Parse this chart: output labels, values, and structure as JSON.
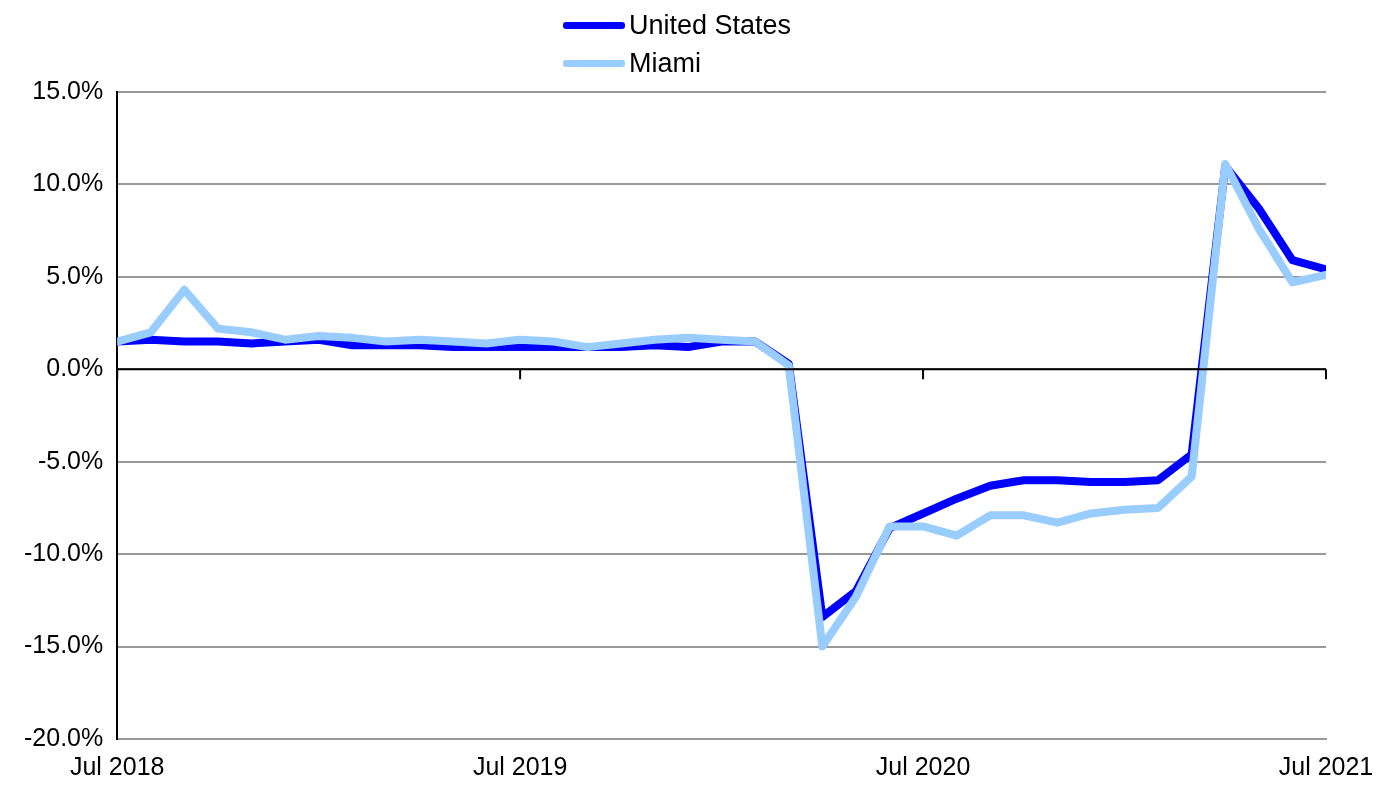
{
  "chart_data": {
    "type": "line",
    "x": [
      "2018-07",
      "2018-08",
      "2018-09",
      "2018-10",
      "2018-11",
      "2018-12",
      "2019-01",
      "2019-02",
      "2019-03",
      "2019-04",
      "2019-05",
      "2019-06",
      "2019-07",
      "2019-08",
      "2019-09",
      "2019-10",
      "2019-11",
      "2019-12",
      "2020-01",
      "2020-02",
      "2020-03",
      "2020-04",
      "2020-05",
      "2020-06",
      "2020-07",
      "2020-08",
      "2020-09",
      "2020-10",
      "2020-11",
      "2020-12",
      "2021-01",
      "2021-02",
      "2021-03",
      "2021-04",
      "2021-05",
      "2021-06",
      "2021-07"
    ],
    "series": [
      {
        "name": "United States",
        "color": "#0000ff",
        "values": [
          1.5,
          1.6,
          1.5,
          1.5,
          1.4,
          1.5,
          1.6,
          1.3,
          1.3,
          1.3,
          1.2,
          1.2,
          1.2,
          1.2,
          1.2,
          1.2,
          1.3,
          1.2,
          1.5,
          1.5,
          0.3,
          -13.4,
          -12.0,
          -8.6,
          -7.8,
          -7.0,
          -6.3,
          -6.0,
          -6.0,
          -6.1,
          -6.1,
          -6.0,
          -4.6,
          11.0,
          8.7,
          5.9,
          5.4
        ]
      },
      {
        "name": "Miami",
        "color": "#99ccff",
        "values": [
          1.5,
          2.0,
          4.3,
          2.2,
          2.0,
          1.6,
          1.8,
          1.7,
          1.5,
          1.6,
          1.5,
          1.4,
          1.6,
          1.5,
          1.2,
          1.4,
          1.6,
          1.7,
          1.6,
          1.5,
          0.2,
          -15.0,
          -12.3,
          -8.5,
          -8.5,
          -9.0,
          -7.9,
          -7.9,
          -8.3,
          -7.8,
          -7.6,
          -7.5,
          -5.8,
          11.1,
          7.6,
          4.7,
          5.1
        ]
      }
    ],
    "xlim": [
      "2018-07",
      "2021-07"
    ],
    "xticks": [
      {
        "value": "2018-07",
        "label": "Jul 2018"
      },
      {
        "value": "2019-07",
        "label": "Jul 2019"
      },
      {
        "value": "2020-07",
        "label": "Jul 2020"
      },
      {
        "value": "2021-07",
        "label": "Jul 2021"
      }
    ],
    "ylim": [
      -20,
      15
    ],
    "yticks": [
      {
        "value": -20,
        "label": "-20.0%"
      },
      {
        "value": -15,
        "label": "-15.0%"
      },
      {
        "value": -10,
        "label": "-10.0%"
      },
      {
        "value": -5,
        "label": "-5.0%"
      },
      {
        "value": 0,
        "label": "0.0%"
      },
      {
        "value": 5,
        "label": "5.0%"
      },
      {
        "value": 10,
        "label": "10.0%"
      },
      {
        "value": 15,
        "label": "15.0%"
      }
    ],
    "grid": "y",
    "legend": "top",
    "marker": "none",
    "line_style": "solid"
  }
}
